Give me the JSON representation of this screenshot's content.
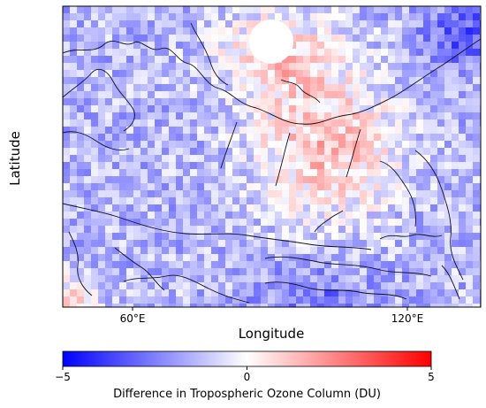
{
  "figure": {
    "y_axis_label": "Latitude",
    "x_axis_label": "Longitude",
    "x_ticks": [
      {
        "lon": 60,
        "label": "60°E"
      },
      {
        "lon": 120,
        "label": "120°E"
      }
    ],
    "lon_range": [
      40,
      140
    ]
  },
  "colorbar": {
    "label": "Difference in Tropospheric Ozone Column (DU)",
    "min": -5,
    "max": 5,
    "ticks": [
      {
        "value": -5,
        "label": "−5"
      },
      {
        "value": 0,
        "label": "0"
      },
      {
        "value": 5,
        "label": "5"
      }
    ],
    "colors": {
      "low": "#0000ff",
      "mid": "#ffffff",
      "high": "#ff0000"
    }
  },
  "map": {
    "projection": "polar-stereographic",
    "data_gap_at_pole": true,
    "coastlines": true,
    "country_borders": true
  }
}
